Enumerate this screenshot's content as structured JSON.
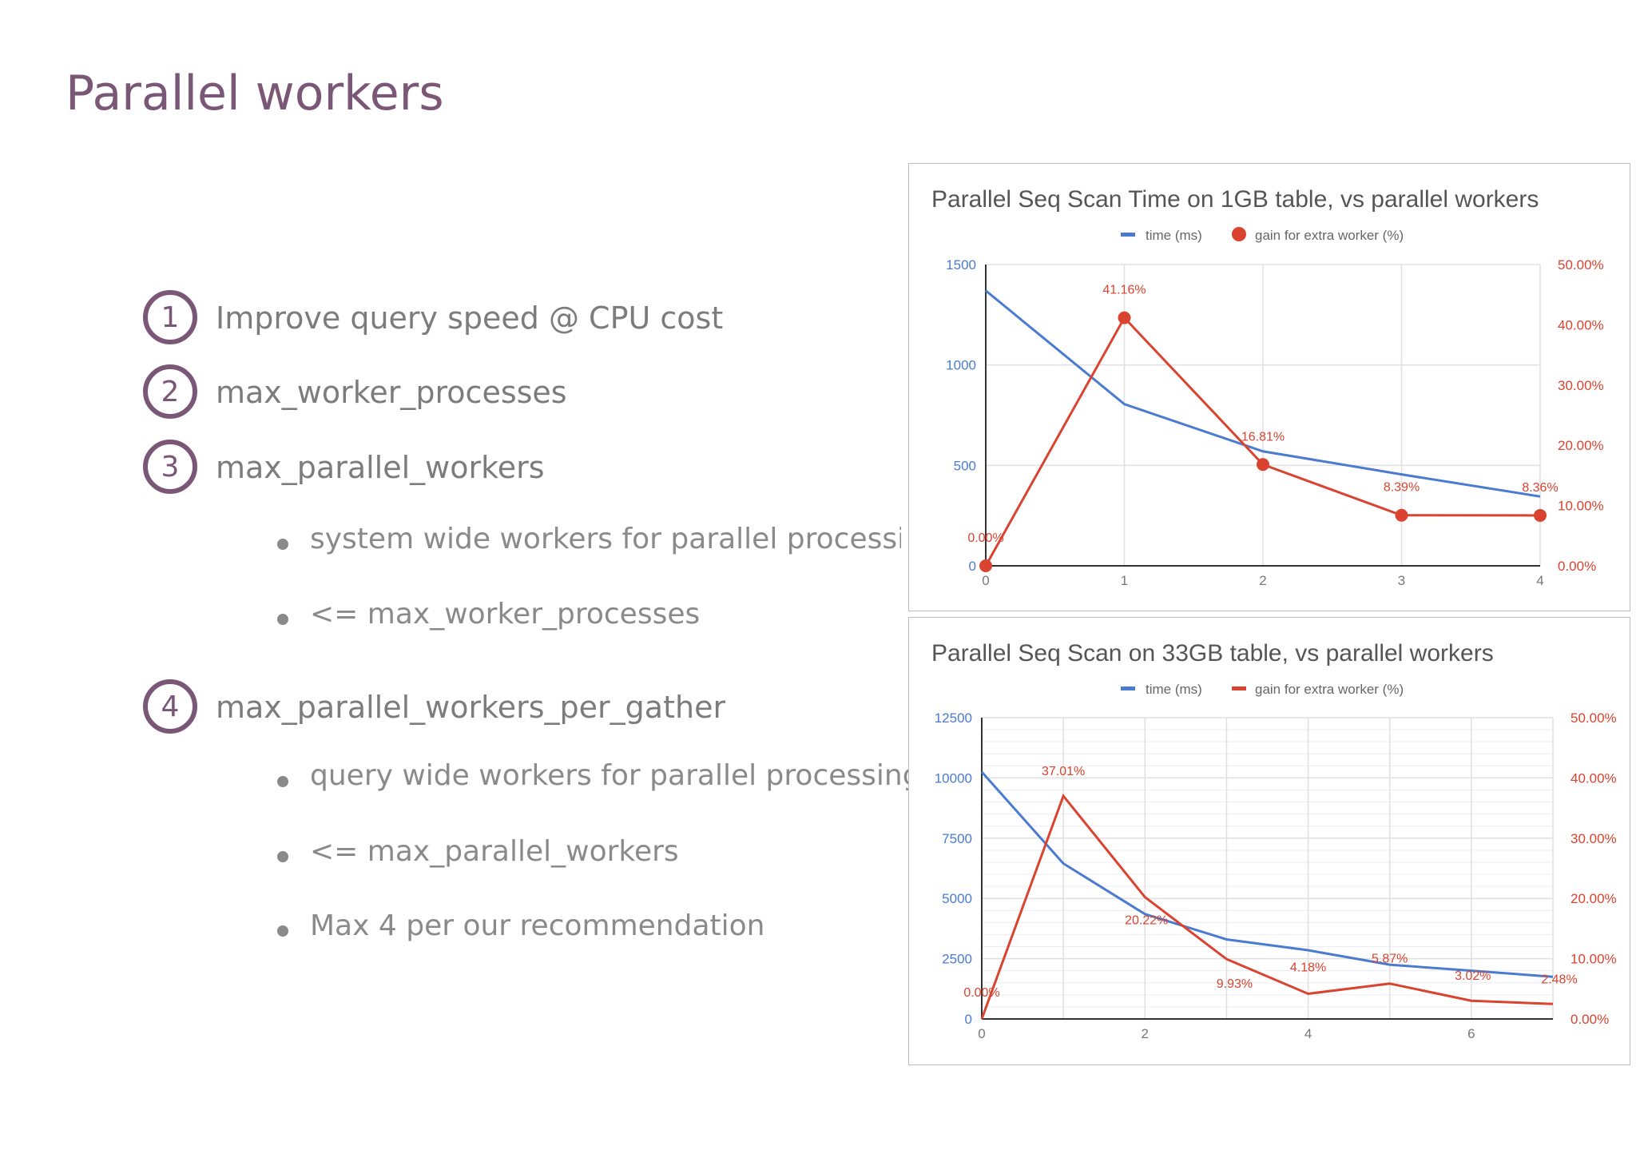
{
  "slide": {
    "title": "Parallel workers",
    "items": [
      {
        "number": "1",
        "text": "Improve query speed @ CPU cost"
      },
      {
        "number": "2",
        "text": "max_worker_processes"
      },
      {
        "number": "3",
        "text": "max_parallel_workers",
        "subitems": [
          "system wide workers for parallel processing",
          "<= max_worker_processes"
        ]
      },
      {
        "number": "4",
        "text": "max_parallel_workers_per_gather",
        "subitems": [
          "query wide workers for parallel processing",
          "<= max_parallel_workers",
          "Max 4 per our recommendation"
        ]
      }
    ]
  },
  "colors": {
    "accent": "#7a5677",
    "time_series": "#4a7bd0",
    "gain_series": "#d9432f"
  },
  "chart_data": [
    {
      "type": "line",
      "title": "Parallel Seq Scan Time on 1GB table, vs parallel workers",
      "x": [
        0,
        1,
        2,
        3,
        4
      ],
      "x_ticks": [
        "0",
        "1",
        "2",
        "3",
        "4"
      ],
      "xlim": [
        0,
        4
      ],
      "ylim_left": [
        0,
        1500
      ],
      "y_ticks_left": [
        "0",
        "500",
        "1000",
        "1500"
      ],
      "ylim_right": [
        0,
        50
      ],
      "y_ticks_right": [
        "0.00%",
        "10.00%",
        "20.00%",
        "30.00%",
        "40.00%",
        "50.00%"
      ],
      "legend_position": "top",
      "series": [
        {
          "name": "time (ms)",
          "axis": "left",
          "values": [
            1370,
            805,
            570,
            455,
            345
          ],
          "markers": false
        },
        {
          "name": "gain for extra worker (%)",
          "axis": "right",
          "values": [
            0,
            41.16,
            16.81,
            8.39,
            8.36
          ],
          "markers": true,
          "labels": [
            "0.00%",
            "41.16%",
            "16.81%",
            "8.39%",
            "8.36%"
          ]
        }
      ]
    },
    {
      "type": "line",
      "title": "Parallel Seq Scan on 33GB table, vs parallel workers",
      "x": [
        0,
        1,
        2,
        3,
        4,
        5,
        6,
        7
      ],
      "x_ticks": [
        "0",
        "2",
        "4",
        "6"
      ],
      "x_tick_values": [
        0,
        2,
        4,
        6
      ],
      "xlim": [
        0,
        7
      ],
      "ylim_left": [
        0,
        12500
      ],
      "y_ticks_left": [
        "0",
        "2500",
        "5000",
        "7500",
        "10000",
        "12500"
      ],
      "ylim_right": [
        0,
        50
      ],
      "y_ticks_right": [
        "0.00%",
        "10.00%",
        "20.00%",
        "30.00%",
        "40.00%",
        "50.00%"
      ],
      "legend_position": "top",
      "series": [
        {
          "name": "time (ms)",
          "axis": "left",
          "values": [
            10250,
            6450,
            4350,
            3300,
            2850,
            2250,
            2000,
            1750
          ],
          "markers": false
        },
        {
          "name": "gain for extra worker (%)",
          "axis": "right",
          "values": [
            0,
            37.01,
            20.22,
            9.93,
            4.18,
            5.87,
            3.02,
            2.48
          ],
          "markers": false,
          "labels": [
            "0.00%",
            "37.01%",
            "20.22%",
            "9.93%",
            "4.18%",
            "5.87%",
            "3.02%",
            "2.48%"
          ]
        }
      ]
    }
  ]
}
